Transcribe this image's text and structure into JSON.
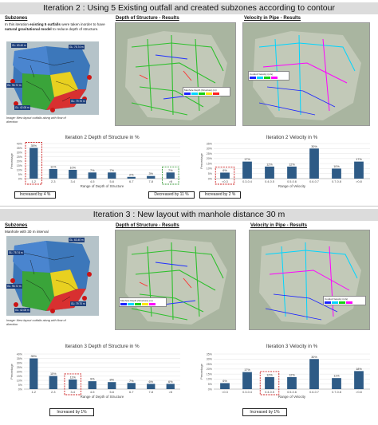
{
  "iteration2": {
    "banner": "Iteration 2 : Using 5 Existing outfall and created subzones according to contour",
    "subzones_heading": "Subzones",
    "description_parts": [
      "In this iteration ",
      "existing 5 outfalls",
      " were taken inorder to have ",
      "natural gravitational model",
      " to reduce depth of structure."
    ],
    "map_caption": "Image: New layout outfalls along with flow of direction",
    "depth_title": "Depth of Structure - Results",
    "velocity_title": "Velocity in Pipe - Results",
    "outfall_labels": [
      "GL: 63.40 m",
      "GL: 75.74 m",
      "GL: 96.72 m",
      "GL: 79.70 m",
      "GL: 42.08 m"
    ]
  },
  "iteration3": {
    "banner": "Iteration 3 : New layout with manhole distance 30 m",
    "subzones_heading": "Subzones",
    "description": "Manhole with 30 m interval",
    "map_caption": "Image: New layout outfalls along with flow of direction",
    "depth_title": "Depth of Structure - Results",
    "velocity_title": "Velocity in Pipe - Results",
    "outfall_labels": [
      "GL: 63.40 m",
      "GL: 75.74 m",
      "GL: 96.72 m",
      "GL: 79.70 m",
      "GL: 42.08 m"
    ]
  },
  "callouts": {
    "it2_depth_increase": "Increased by 4 %",
    "it2_depth_decrease": "Decreased by 11 %",
    "it2_velocity_increase": "Increased by 2 %",
    "it3_depth_increase": "Increased by 1%",
    "it3_velocity_increase": "Increased by 1%"
  },
  "map_legend": {
    "depth_title": "Manhole Depth (Structure) (m)",
    "velocity_title": "Conduit Velocity (m/s)",
    "colors": [
      "#1a22ff",
      "#00d5ff",
      "#14d214",
      "#ffe600",
      "#ff2020",
      "#ff00ff"
    ]
  },
  "colors": {
    "bar": "#2e5b86",
    "highlight_red": "#cc2020",
    "highlight_green": "#3a9a3a"
  },
  "chart_data": [
    {
      "type": "bar",
      "title": "Iteration 2 Depth of Structure in %",
      "xlabel": "Range of Depth of Structure",
      "ylabel": "Percentage",
      "categories": [
        "1-2",
        "2-3",
        "3-4",
        "4-5",
        "5-6",
        "6-7",
        "7-8",
        ">8"
      ],
      "values": [
        35,
        11,
        10,
        7,
        7,
        2,
        3,
        7
      ],
      "labels": [
        "35%",
        "11%",
        "10%",
        "7%",
        "7%",
        "2%",
        "3%",
        "7%"
      ],
      "yticks": [
        "0%",
        "5%",
        "10%",
        "15%",
        "20%",
        "25%",
        "30%",
        "35%",
        "40%"
      ],
      "ylim": [
        0,
        40
      ]
    },
    {
      "type": "bar",
      "title": "Iteration 2 Velocity in %",
      "xlabel": "Range of Velocity",
      "ylabel": "Percentage",
      "categories": [
        "<0.3",
        "0.3-0.4",
        "0.4-0.5",
        "0.5-0.6",
        "0.6-0.7",
        "0.7-0.8",
        ">0.8"
      ],
      "values": [
        6,
        17,
        12,
        12,
        30,
        10,
        17
      ],
      "labels": [
        "6%",
        "17%",
        "12%",
        "12%",
        "30%",
        "10%",
        "17%"
      ],
      "yticks": [
        "0%",
        "5%",
        "10%",
        "15%",
        "20%",
        "25%",
        "30%",
        "35%"
      ],
      "ylim": [
        0,
        35
      ]
    },
    {
      "type": "bar",
      "title": "Iteration 3 Depth of Structure in %",
      "xlabel": "Range of Depth of Structure",
      "ylabel": "Percentage",
      "categories": [
        "1-2",
        "2-3",
        "3-4",
        "4-5",
        "5-6",
        "6-7",
        "7-8",
        ">8"
      ],
      "values": [
        35,
        15,
        11,
        9,
        8,
        7,
        6,
        6
      ],
      "labels": [
        "35%",
        "15%",
        "11%",
        "9%",
        "8%",
        "7%",
        "6%",
        "6%"
      ],
      "yticks": [
        "0%",
        "5%",
        "10%",
        "15%",
        "20%",
        "25%",
        "30%",
        "35%",
        "40%"
      ],
      "ylim": [
        0,
        40
      ]
    },
    {
      "type": "bar",
      "title": "Iteration 3 Velocity in %",
      "xlabel": "Range of Velocity",
      "ylabel": "Percentage",
      "categories": [
        "<0.3",
        "0.3-0.4",
        "0.4-0.5",
        "0.5-0.6",
        "0.6-0.7",
        "0.7-0.8",
        ">0.8"
      ],
      "values": [
        6,
        17,
        12,
        12,
        30,
        11,
        18
      ],
      "labels": [
        "6%",
        "17%",
        "12%",
        "12%",
        "30%",
        "11%",
        "18%"
      ],
      "yticks": [
        "0%",
        "5%",
        "10%",
        "15%",
        "20%",
        "25%",
        "30%",
        "35%"
      ],
      "ylim": [
        0,
        35
      ]
    }
  ]
}
